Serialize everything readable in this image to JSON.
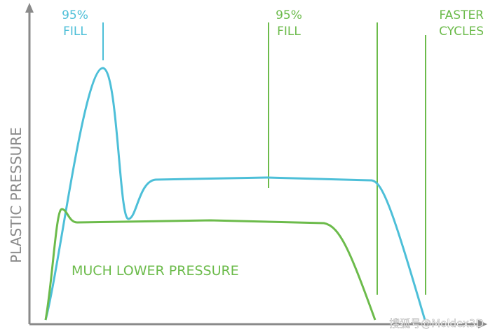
{
  "annotations": [
    {
      "lines": [
        "95%",
        "FILL"
      ]
    },
    {
      "lines": [
        "95%",
        "FILL"
      ]
    },
    {
      "lines": [
        "FASTER",
        "CYCLES"
      ]
    }
  ],
  "y_axis_label": "PLASTIC PRESSURE",
  "curve_label": "MUCH LOWER PRESSURE",
  "watermark": "搜狐号@Moldex3D"
}
